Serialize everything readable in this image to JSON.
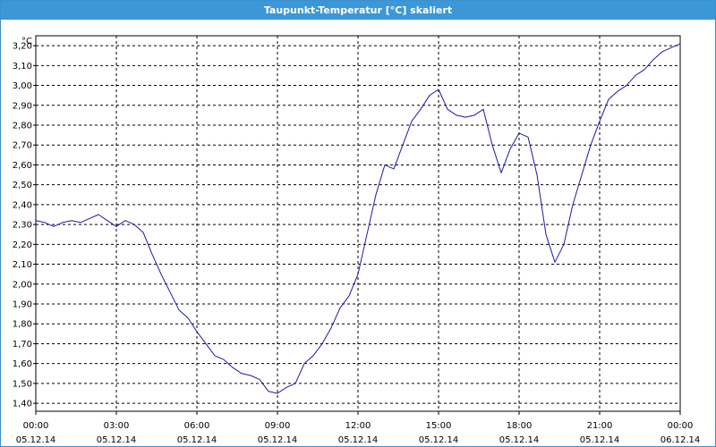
{
  "window": {
    "title": "Taupunkt-Temperatur [°C] skaliert"
  },
  "chart_data": {
    "type": "line",
    "title": "Taupunkt-Temperatur [°C] skaliert",
    "unit_label": "°C",
    "xlabel": "",
    "ylabel": "°C",
    "ylim": [
      1.36,
      3.25
    ],
    "xlim_hours": [
      0,
      24
    ],
    "grid": true,
    "legend": "none",
    "line_color": "#1a1aa6",
    "y_ticks": [
      "1,40",
      "1,50",
      "1,60",
      "1,70",
      "1,80",
      "1,90",
      "2,00",
      "2,10",
      "2,20",
      "2,30",
      "2,40",
      "2,50",
      "2,60",
      "2,70",
      "2,80",
      "2,90",
      "3,00",
      "3,10",
      "3,20"
    ],
    "x_ticks": [
      {
        "time": "00:00",
        "date": "05.12.14"
      },
      {
        "time": "03:00",
        "date": "05.12.14"
      },
      {
        "time": "06:00",
        "date": "05.12.14"
      },
      {
        "time": "09:00",
        "date": "05.12.14"
      },
      {
        "time": "12:00",
        "date": "05.12.14"
      },
      {
        "time": "15:00",
        "date": "05.12.14"
      },
      {
        "time": "18:00",
        "date": "05.12.14"
      },
      {
        "time": "21:00",
        "date": "05.12.14"
      },
      {
        "time": "00:00",
        "date": "06.12.14"
      }
    ],
    "series": [
      {
        "x": [
          "05.12.14 00:00",
          "05.12.14 00:20",
          "05.12.14 00:40",
          "05.12.14 01:00",
          "05.12.14 01:20",
          "05.12.14 01:40",
          "05.12.14 02:00",
          "05.12.14 02:20",
          "05.12.14 02:40",
          "05.12.14 03:00",
          "05.12.14 03:20",
          "05.12.14 03:40",
          "05.12.14 04:00",
          "05.12.14 04:20",
          "05.12.14 04:40",
          "05.12.14 05:00",
          "05.12.14 05:20",
          "05.12.14 05:40",
          "05.12.14 06:00",
          "05.12.14 06:20",
          "05.12.14 06:40",
          "05.12.14 07:00",
          "05.12.14 07:20",
          "05.12.14 07:40",
          "05.12.14 08:00",
          "05.12.14 08:20",
          "05.12.14 08:40",
          "05.12.14 09:00",
          "05.12.14 09:20",
          "05.12.14 09:40",
          "05.12.14 10:00",
          "05.12.14 10:20",
          "05.12.14 10:40",
          "05.12.14 11:00",
          "05.12.14 11:20",
          "05.12.14 11:40",
          "05.12.14 12:00",
          "05.12.14 12:20",
          "05.12.14 12:40",
          "05.12.14 13:00",
          "05.12.14 13:20",
          "05.12.14 13:40",
          "05.12.14 14:00",
          "05.12.14 14:20",
          "05.12.14 14:40",
          "05.12.14 15:00",
          "05.12.14 15:20",
          "05.12.14 15:40",
          "05.12.14 16:00",
          "05.12.14 16:20",
          "05.12.14 16:40",
          "05.12.14 17:00",
          "05.12.14 17:20",
          "05.12.14 17:40",
          "05.12.14 18:00",
          "05.12.14 18:20",
          "05.12.14 18:40",
          "05.12.14 19:00",
          "05.12.14 19:20",
          "05.12.14 19:40",
          "05.12.14 20:00",
          "05.12.14 20:20",
          "05.12.14 20:40",
          "05.12.14 21:00",
          "05.12.14 21:20",
          "05.12.14 21:40",
          "05.12.14 22:00",
          "05.12.14 22:20",
          "05.12.14 22:40",
          "05.12.14 23:00",
          "05.12.14 23:20",
          "05.12.14 23:40",
          "06.12.14 00:00"
        ],
        "values": [
          2.32,
          2.31,
          2.29,
          2.31,
          2.32,
          2.31,
          2.33,
          2.35,
          2.32,
          2.29,
          2.32,
          2.3,
          2.26,
          2.15,
          2.05,
          1.96,
          1.87,
          1.83,
          1.76,
          1.7,
          1.64,
          1.62,
          1.58,
          1.55,
          1.54,
          1.52,
          1.46,
          1.45,
          1.48,
          1.5,
          1.6,
          1.64,
          1.7,
          1.78,
          1.88,
          1.94,
          2.05,
          2.25,
          2.45,
          2.6,
          2.58,
          2.7,
          2.82,
          2.88,
          2.95,
          2.98,
          2.88,
          2.85,
          2.84,
          2.85,
          2.88,
          2.7,
          2.56,
          2.68,
          2.76,
          2.74,
          2.55,
          2.25,
          2.11,
          2.2,
          2.4,
          2.55,
          2.7,
          2.82,
          2.93,
          2.97,
          3.0,
          3.05,
          3.08,
          3.13,
          3.17,
          3.19,
          3.21
        ]
      }
    ]
  }
}
